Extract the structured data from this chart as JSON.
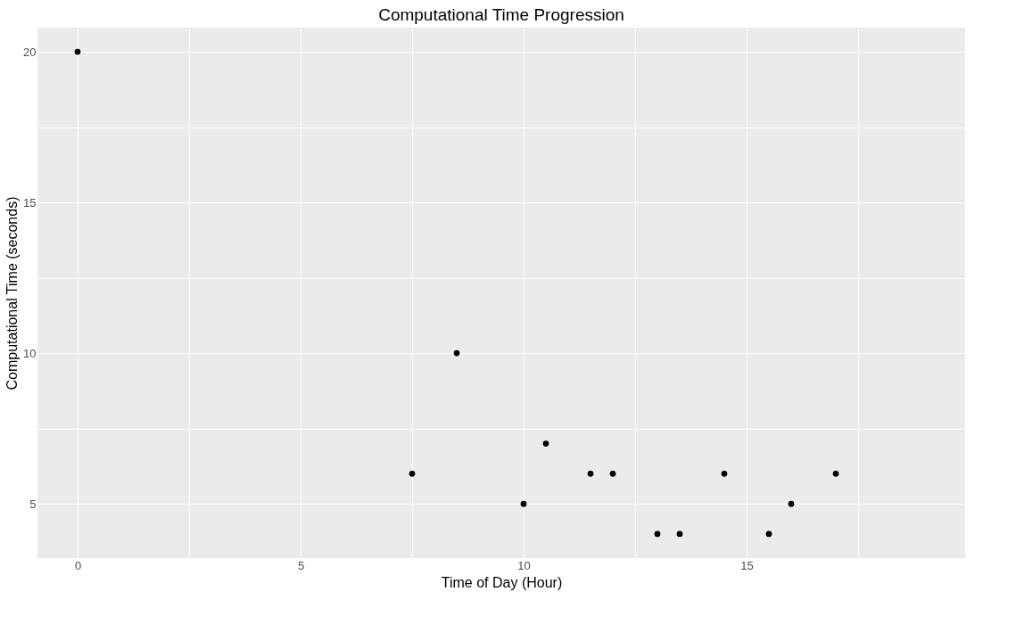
{
  "chart_data": {
    "type": "scatter",
    "title": "Computational Time Progression",
    "xlabel": "Time of Day (Hour)",
    "ylabel": "Computational Time (seconds)",
    "x": [
      0,
      7.5,
      8.5,
      10,
      10.5,
      11.5,
      12,
      13,
      13.5,
      14.5,
      15.5,
      16,
      17
    ],
    "series": [
      {
        "color": "#000000",
        "values": [
          20,
          6,
          10,
          5,
          7,
          6,
          6,
          4,
          4,
          6,
          4,
          5,
          6
        ]
      }
    ],
    "xlim": [
      -0.9,
      19.9
    ],
    "ylim": [
      3.2,
      20.8
    ],
    "xticks": [
      0,
      {
        "value": 2.5,
        "label": null
      },
      5,
      {
        "value": 7.5,
        "label": null
      },
      10,
      {
        "value": 12.5,
        "label": null
      },
      15,
      {
        "value": 17.5,
        "label": null
      }
    ],
    "yticks": [
      5,
      {
        "value": 7.5,
        "label": null
      },
      10,
      {
        "value": 12.5,
        "label": null
      },
      15,
      {
        "value": 17.5,
        "label": null
      },
      20
    ],
    "grid": true,
    "marker": "circle"
  }
}
